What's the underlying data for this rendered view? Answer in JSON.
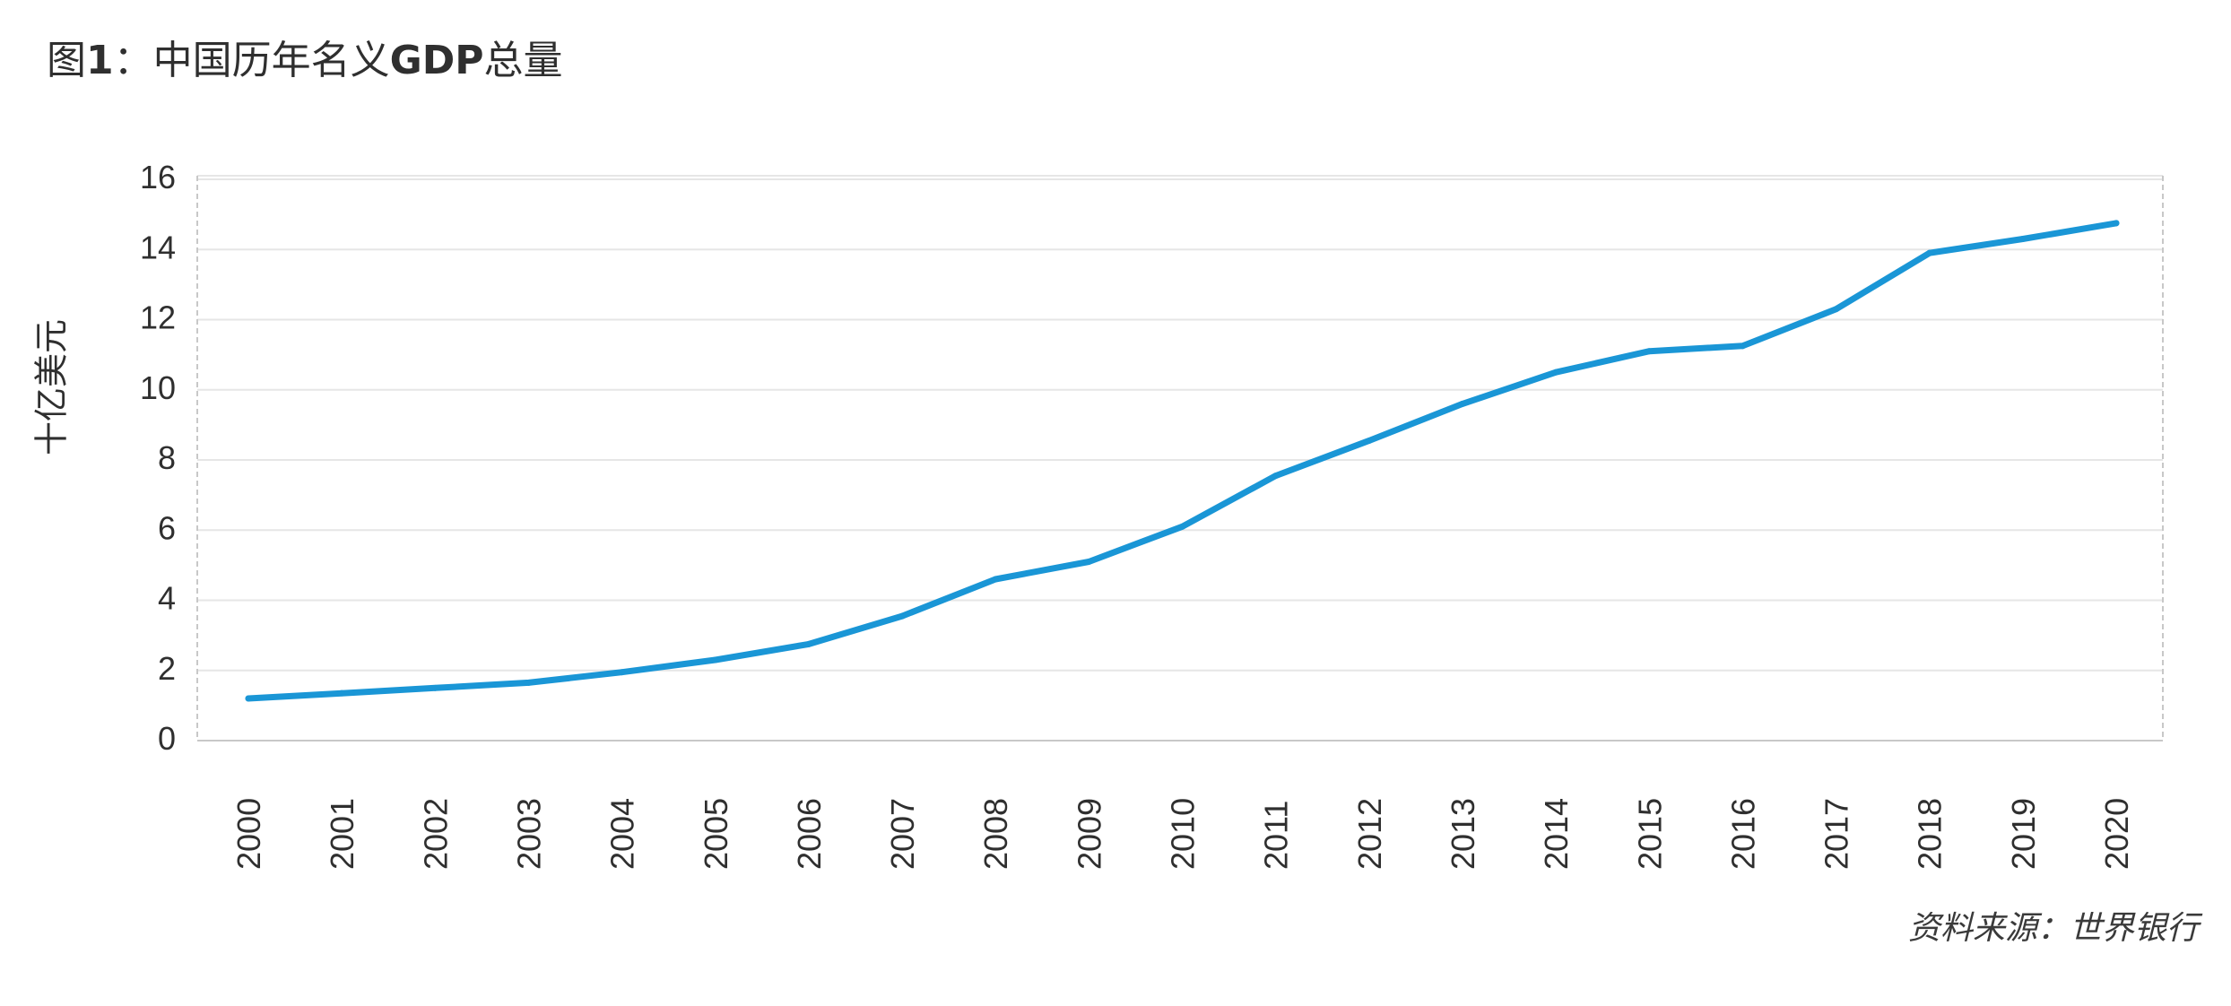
{
  "title_prefix": "图",
  "title_number": "1",
  "title_text": "：中国历年名义",
  "title_bold": "GDP",
  "title_suffix": "总量",
  "source": "资料来源：世界银行",
  "colors": {
    "line": "#1a96d6",
    "grid": "#e6e6e6",
    "axis": "#c8c8c8"
  },
  "chart_data": {
    "type": "line",
    "title": "图1：中国历年名义GDP总量",
    "xlabel": "",
    "ylabel": "十亿美元",
    "ylim": [
      0,
      16
    ],
    "yticks": [
      0,
      2,
      4,
      6,
      8,
      10,
      12,
      14,
      16
    ],
    "grid": true,
    "categories": [
      "2000",
      "2001",
      "2002",
      "2003",
      "2004",
      "2005",
      "2006",
      "2007",
      "2008",
      "2009",
      "2010",
      "2011",
      "2012",
      "2013",
      "2014",
      "2015",
      "2016",
      "2017",
      "2018",
      "2019",
      "2020"
    ],
    "series": [
      {
        "values": [
          1.2,
          1.35,
          1.5,
          1.65,
          1.95,
          2.3,
          2.75,
          3.55,
          4.6,
          5.1,
          6.1,
          7.55,
          8.55,
          9.6,
          10.5,
          11.1,
          11.25,
          12.3,
          13.9,
          14.3,
          14.75
        ]
      }
    ]
  }
}
